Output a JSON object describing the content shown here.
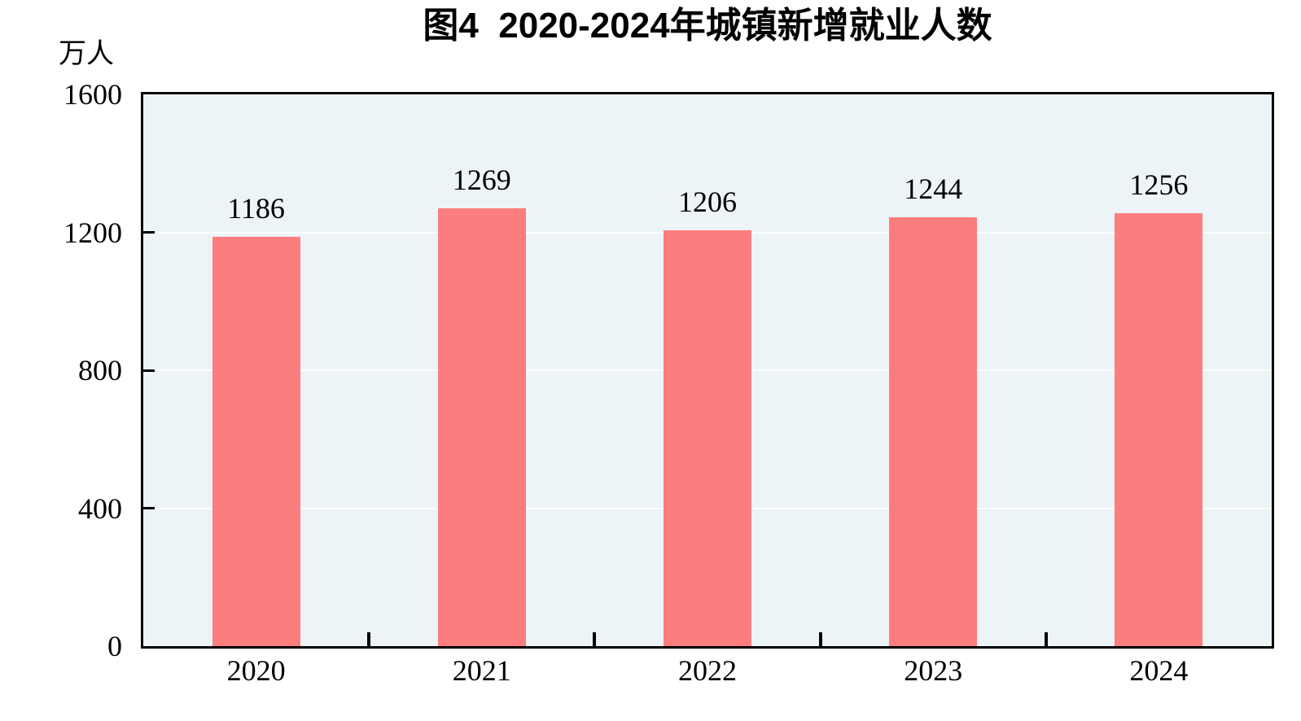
{
  "chart_data": {
    "type": "bar",
    "title": "图4  2020-2024年城镇新增就业人数",
    "unit_label": "万人",
    "categories": [
      "2020",
      "2021",
      "2022",
      "2023",
      "2024"
    ],
    "values": [
      1186,
      1269,
      1206,
      1244,
      1256
    ],
    "xlabel": "",
    "ylabel": "万人",
    "ylim": [
      0,
      1600
    ],
    "yticks": [
      0,
      400,
      800,
      1200,
      1600
    ],
    "grid": "horizontal gridlines on",
    "legend": "none",
    "colors": {
      "bar": "#FC7D7D",
      "plot_background": "#EDF4F7",
      "gridline": "#FFFFFF",
      "axis": "#000000",
      "text": "#000000"
    }
  }
}
